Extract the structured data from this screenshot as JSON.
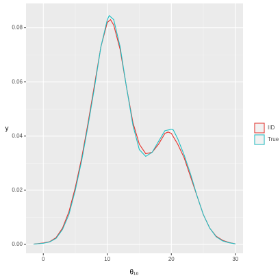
{
  "chart_data": {
    "type": "line",
    "xlabel": "θ₁₀",
    "ylabel": "y",
    "xlim": [
      -2.7,
      31.2
    ],
    "ylim": [
      -0.0033,
      0.089
    ],
    "xticks": [
      0,
      10,
      20,
      30
    ],
    "yticks": [
      {
        "value": 0,
        "label": "0.00"
      },
      0.02,
      0.04,
      0.06,
      0.08
    ],
    "x_minor_ticks": [
      -5,
      5,
      15,
      25
    ],
    "y_minor_ticks": [
      0.01,
      0.03,
      0.05,
      0.07
    ],
    "grid": true,
    "legend": "right",
    "series": [
      {
        "name": "IID",
        "color": "#e5302a",
        "x": [
          -1.5,
          0,
          1,
          2,
          3,
          4,
          5,
          6,
          7,
          8,
          9,
          10,
          10.5,
          11,
          12,
          13,
          14,
          15,
          16,
          17,
          18,
          19,
          19.5,
          20,
          21,
          22,
          23,
          24,
          25,
          26,
          27,
          28,
          29,
          30
        ],
        "values": [
          0.0001,
          0.0005,
          0.001,
          0.0025,
          0.006,
          0.012,
          0.021,
          0.032,
          0.045,
          0.059,
          0.073,
          0.082,
          0.083,
          0.081,
          0.072,
          0.058,
          0.045,
          0.037,
          0.0335,
          0.034,
          0.037,
          0.041,
          0.0415,
          0.041,
          0.037,
          0.032,
          0.025,
          0.018,
          0.011,
          0.006,
          0.003,
          0.0015,
          0.0007,
          0.0002
        ]
      },
      {
        "name": "True",
        "color": "#1fbfc4",
        "x": [
          -1.5,
          0,
          1,
          2,
          3,
          4,
          5,
          6,
          7,
          8,
          9,
          10,
          10.3,
          11,
          12,
          13,
          14,
          15,
          16,
          17,
          18,
          19,
          20,
          20.3,
          21,
          22,
          23,
          24,
          25,
          26,
          27,
          28,
          29,
          30
        ],
        "values": [
          0.0001,
          0.0004,
          0.0009,
          0.0022,
          0.0055,
          0.011,
          0.02,
          0.031,
          0.044,
          0.058,
          0.073,
          0.083,
          0.0845,
          0.083,
          0.073,
          0.058,
          0.044,
          0.035,
          0.0325,
          0.034,
          0.038,
          0.042,
          0.0425,
          0.0423,
          0.039,
          0.033,
          0.026,
          0.018,
          0.011,
          0.006,
          0.0028,
          0.0013,
          0.0006,
          0.0002
        ]
      }
    ]
  }
}
